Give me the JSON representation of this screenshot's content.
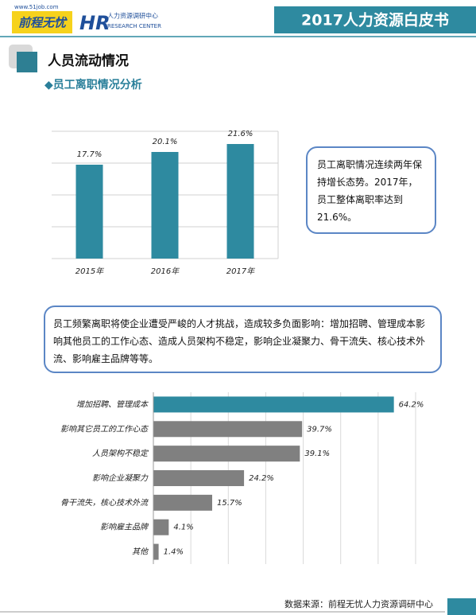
{
  "header": {
    "logo_url": "www.51job.com",
    "logo": "前程无忧",
    "hr": "HR",
    "center_cn": "人力资源调研中心",
    "center_en": "RESEARCH CENTER",
    "title": "2017人力资源白皮书"
  },
  "section": {
    "title": "人员流动情况",
    "subtitle": "◆员工离职情况分析"
  },
  "chart_data": [
    {
      "type": "bar",
      "categories": [
        "2015年",
        "2016年",
        "2017年"
      ],
      "values": [
        17.7,
        20.1,
        21.6
      ],
      "value_labels": [
        "17.7%",
        "20.1%",
        "21.6%"
      ],
      "color": "#2e8aa0",
      "ylim": [
        0,
        24
      ],
      "yticks": [
        0,
        6,
        12,
        18,
        24
      ],
      "grid": true
    },
    {
      "type": "hbar",
      "categories": [
        "增加招聘、管理成本",
        "影响其它员工的工作心态",
        "人员架构不稳定",
        "影响企业凝聚力",
        "骨干流失，核心技术外流",
        "影响雇主品牌",
        "其他"
      ],
      "values": [
        64.2,
        39.7,
        39.1,
        24.2,
        15.7,
        4.1,
        1.4
      ],
      "value_labels": [
        "64.2%",
        "39.7%",
        "39.1%",
        "24.2%",
        "15.7%",
        "4.1%",
        "1.4%"
      ],
      "colors": [
        "#2e8aa0",
        "#808080",
        "#808080",
        "#808080",
        "#808080",
        "#808080",
        "#808080"
      ],
      "xlim": [
        0,
        70
      ],
      "xticks": [
        0,
        10,
        20,
        30,
        40,
        50,
        60,
        70
      ],
      "grid": true
    }
  ],
  "notes": [
    "员工离职情况连续两年保持增长态势。2017年，员工整体离职率达到21.6%。",
    "员工频繁离职将使企业遭受严峻的人才挑战，造成较多负面影响：增加招聘、管理成本影响其他员工的工作心态、造成人员架构不稳定，影响企业凝聚力、骨干流失、核心技术外流、影响雇主品牌等等。"
  ],
  "footer": {
    "source": "数据来源：前程无忧人力资源调研中心"
  }
}
